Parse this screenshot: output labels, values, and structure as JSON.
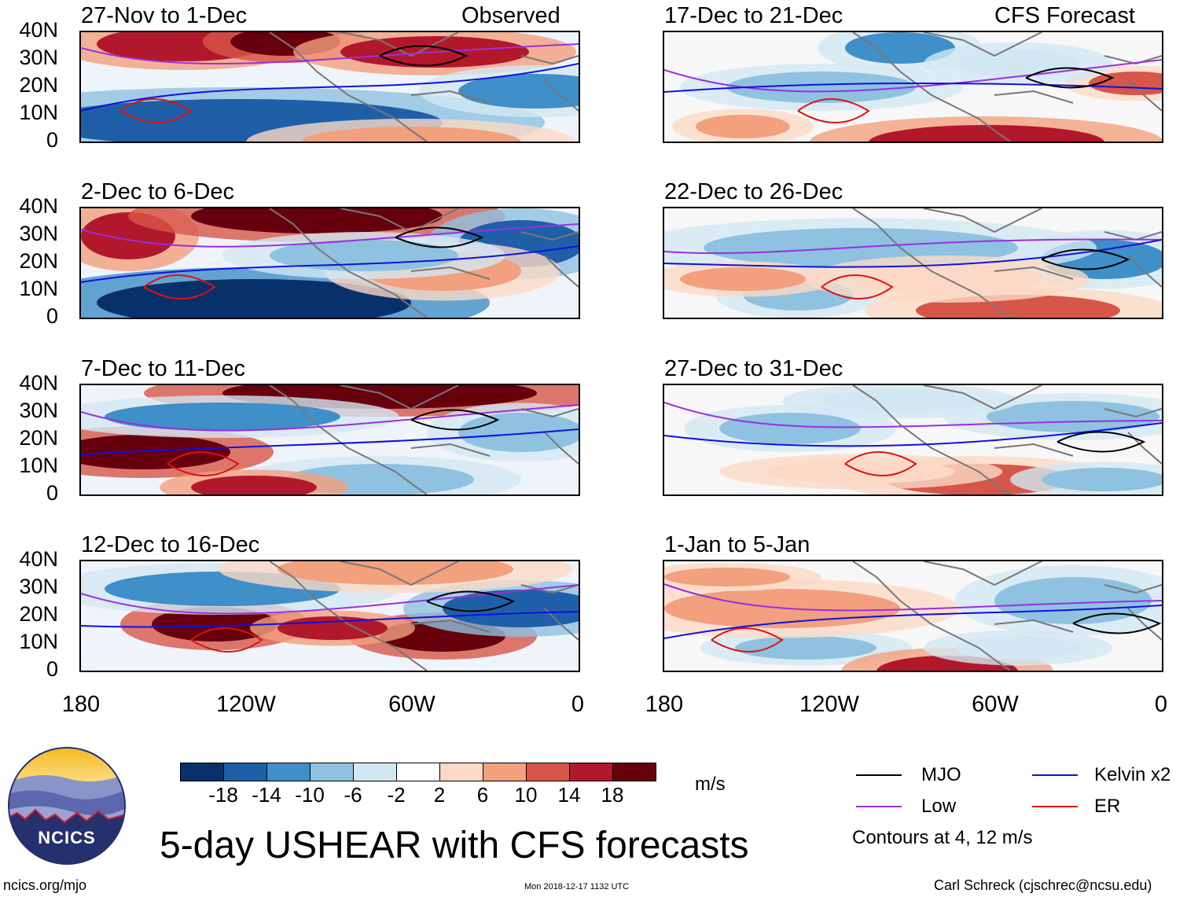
{
  "figure": {
    "title": "5-day USHEAR with CFS forecasts",
    "observed_label": "Observed",
    "forecast_label": "CFS Forecast",
    "units": "m/s",
    "contour_note": "Contours at 4, 12 m/s",
    "website": "ncics.org/mjo",
    "timestamp": "Mon 2018-12-17 1132 UTC",
    "credit": "Carl Schreck (cjschrec@ncsu.edu)",
    "logo_text": "NCICS"
  },
  "panels": {
    "observed": [
      {
        "title": "27-Nov to 1-Dec"
      },
      {
        "title": "2-Dec to 6-Dec"
      },
      {
        "title": "7-Dec to 11-Dec"
      },
      {
        "title": "12-Dec to 16-Dec"
      }
    ],
    "forecast": [
      {
        "title": "17-Dec to 21-Dec"
      },
      {
        "title": "22-Dec to 26-Dec"
      },
      {
        "title": "27-Dec to 31-Dec"
      },
      {
        "title": "1-Jan to 5-Jan"
      }
    ]
  },
  "axes": {
    "lat_labels": [
      "40N",
      "30N",
      "20N",
      "10N",
      "0"
    ],
    "lon_labels": [
      "180",
      "120W",
      "60W",
      "0"
    ]
  },
  "colorbar": {
    "labels": [
      "-18",
      "-14",
      "-10",
      "-6",
      "-2",
      "2",
      "6",
      "10",
      "14",
      "18"
    ],
    "colors": [
      "#08306b",
      "#1f5fa8",
      "#3f8fc8",
      "#8ec2e0",
      "#d3e7f3",
      "#ffffff",
      "#fbd9c6",
      "#f2a07e",
      "#d7564a",
      "#b2182b",
      "#67000d"
    ]
  },
  "legend": {
    "items": [
      {
        "label": "MJO",
        "color": "#000000"
      },
      {
        "label": "Kelvin x2",
        "color": "#1010e0"
      },
      {
        "label": "Low",
        "color": "#9a2fe0"
      },
      {
        "label": "ER",
        "color": "#e01010"
      }
    ]
  }
}
